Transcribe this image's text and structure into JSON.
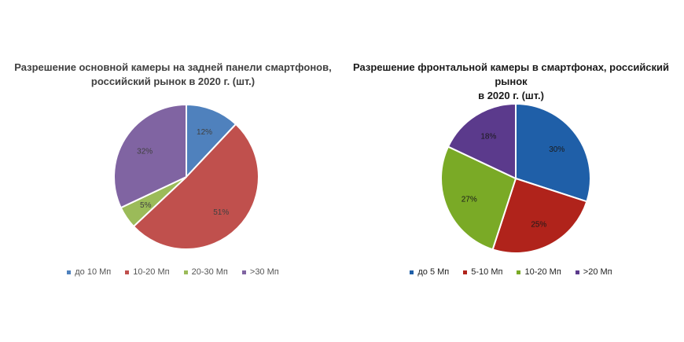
{
  "chart_data": [
    {
      "type": "pie",
      "title": "Разрешение основной камеры на задней панели смартфонов, российский рынок в 2020 г. (шт.)",
      "title_lines": [
        "Разрешение основной камеры на задней панели смартфонов,",
        "российский рынок в 2020 г. (шт.)"
      ],
      "categories": [
        "до 10 Мп",
        "10-20 Мп",
        "20-30 Мп",
        ">30 Мп"
      ],
      "values": [
        12,
        51,
        5,
        32
      ],
      "labels": [
        "12%",
        "51%",
        "5%",
        "32%"
      ],
      "colors": [
        "#4f81bd",
        "#c0504d",
        "#9bbb59",
        "#8064a2"
      ],
      "legend_position": "bottom",
      "center": [
        237,
        225
      ],
      "radius": 92
    },
    {
      "type": "pie",
      "title": "Разрешение фронтальной камеры в смартфонах, российский рынок в 2020 г. (шт.)",
      "title_lines": [
        "Разрешение фронтальной камеры в смартфонах, российский рынок",
        "в 2020 г. (шт.)"
      ],
      "categories": [
        "до 5 Мп",
        "5-10 Мп",
        "10-20 Мп",
        ">20 Мп"
      ],
      "values": [
        30,
        25,
        27,
        18
      ],
      "labels": [
        "30%",
        "25%",
        "27%",
        "18%"
      ],
      "colors": [
        "#1f5fa8",
        "#b0231b",
        "#7aaa26",
        "#5b3a8c"
      ],
      "legend_position": "bottom",
      "center": [
        226,
        227
      ],
      "radius": 95
    }
  ]
}
